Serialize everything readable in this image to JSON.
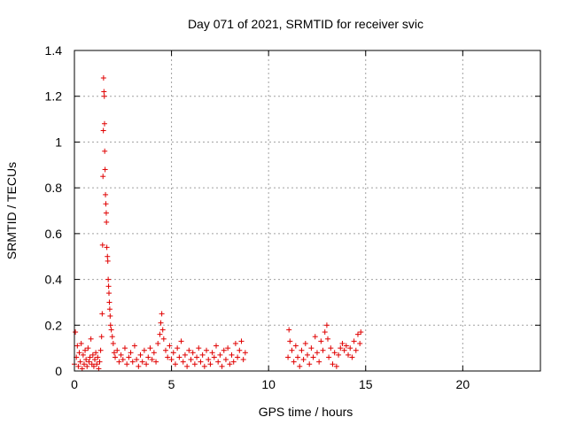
{
  "chart_data": {
    "type": "scatter",
    "title": "Day 071 of 2021, SRMTID for receiver svic",
    "xlabel": "GPS time / hours",
    "ylabel": "SRMTID / TECUs",
    "xlim": [
      0,
      24
    ],
    "ylim": [
      0,
      1.4
    ],
    "x_ticks": [
      0,
      5,
      10,
      15,
      20
    ],
    "x_tick_labels": [
      "0",
      "5",
      "10",
      "15",
      "20"
    ],
    "y_ticks": [
      0,
      0.2,
      0.4,
      0.6,
      0.8,
      1.0,
      1.2,
      1.4
    ],
    "y_tick_labels": [
      "0",
      "0.2",
      "0.4",
      "0.6",
      "0.8",
      "1",
      "1.2",
      "1.4"
    ],
    "grid": true,
    "marker": "+",
    "color": "#e00000",
    "series": [
      {
        "name": "SRMTID",
        "points": [
          [
            0.0,
            0.03
          ],
          [
            0.05,
            0.17
          ],
          [
            0.1,
            0.06
          ],
          [
            0.15,
            0.11
          ],
          [
            0.2,
            0.02
          ],
          [
            0.25,
            0.08
          ],
          [
            0.3,
            0.04
          ],
          [
            0.35,
            0.12
          ],
          [
            0.4,
            0.01
          ],
          [
            0.45,
            0.07
          ],
          [
            0.5,
            0.03
          ],
          [
            0.55,
            0.09
          ],
          [
            0.6,
            0.05
          ],
          [
            0.65,
            0.02
          ],
          [
            0.7,
            0.1
          ],
          [
            0.75,
            0.04
          ],
          [
            0.8,
            0.06
          ],
          [
            0.85,
            0.14
          ],
          [
            0.9,
            0.03
          ],
          [
            0.95,
            0.07
          ],
          [
            1.0,
            0.02
          ],
          [
            1.05,
            0.05
          ],
          [
            1.1,
            0.08
          ],
          [
            1.15,
            0.03
          ],
          [
            1.2,
            0.06
          ],
          [
            1.25,
            0.01
          ],
          [
            1.3,
            0.04
          ],
          [
            1.35,
            0.09
          ],
          [
            1.4,
            0.15
          ],
          [
            1.43,
            0.25
          ],
          [
            1.45,
            0.55
          ],
          [
            1.47,
            0.85
          ],
          [
            1.49,
            1.05
          ],
          [
            1.5,
            1.28
          ],
          [
            1.52,
            1.22
          ],
          [
            1.54,
            1.2
          ],
          [
            1.55,
            1.08
          ],
          [
            1.56,
            0.96
          ],
          [
            1.58,
            0.88
          ],
          [
            1.6,
            0.77
          ],
          [
            1.62,
            0.73
          ],
          [
            1.64,
            0.69
          ],
          [
            1.65,
            0.65
          ],
          [
            1.67,
            0.54
          ],
          [
            1.7,
            0.5
          ],
          [
            1.72,
            0.48
          ],
          [
            1.74,
            0.4
          ],
          [
            1.76,
            0.37
          ],
          [
            1.78,
            0.34
          ],
          [
            1.8,
            0.3
          ],
          [
            1.82,
            0.27
          ],
          [
            1.84,
            0.24
          ],
          [
            1.86,
            0.2
          ],
          [
            1.9,
            0.18
          ],
          [
            1.95,
            0.15
          ],
          [
            2.0,
            0.12
          ],
          [
            2.05,
            0.08
          ],
          [
            2.1,
            0.06
          ],
          [
            2.2,
            0.09
          ],
          [
            2.3,
            0.04
          ],
          [
            2.4,
            0.07
          ],
          [
            2.5,
            0.05
          ],
          [
            2.6,
            0.1
          ],
          [
            2.7,
            0.03
          ],
          [
            2.8,
            0.06
          ],
          [
            2.9,
            0.08
          ],
          [
            3.0,
            0.04
          ],
          [
            3.1,
            0.11
          ],
          [
            3.2,
            0.05
          ],
          [
            3.3,
            0.02
          ],
          [
            3.4,
            0.07
          ],
          [
            3.5,
            0.04
          ],
          [
            3.6,
            0.09
          ],
          [
            3.7,
            0.03
          ],
          [
            3.8,
            0.06
          ],
          [
            3.9,
            0.1
          ],
          [
            4.0,
            0.05
          ],
          [
            4.1,
            0.08
          ],
          [
            4.2,
            0.04
          ],
          [
            4.3,
            0.12
          ],
          [
            4.4,
            0.16
          ],
          [
            4.45,
            0.21
          ],
          [
            4.5,
            0.25
          ],
          [
            4.55,
            0.18
          ],
          [
            4.6,
            0.14
          ],
          [
            4.7,
            0.09
          ],
          [
            4.8,
            0.06
          ],
          [
            4.9,
            0.11
          ],
          [
            5.0,
            0.05
          ],
          [
            5.1,
            0.08
          ],
          [
            5.2,
            0.03
          ],
          [
            5.3,
            0.1
          ],
          [
            5.4,
            0.06
          ],
          [
            5.5,
            0.13
          ],
          [
            5.6,
            0.04
          ],
          [
            5.7,
            0.07
          ],
          [
            5.8,
            0.02
          ],
          [
            5.9,
            0.09
          ],
          [
            6.0,
            0.05
          ],
          [
            6.1,
            0.08
          ],
          [
            6.2,
            0.03
          ],
          [
            6.3,
            0.06
          ],
          [
            6.4,
            0.1
          ],
          [
            6.5,
            0.04
          ],
          [
            6.6,
            0.07
          ],
          [
            6.7,
            0.02
          ],
          [
            6.8,
            0.09
          ],
          [
            6.9,
            0.05
          ],
          [
            7.0,
            0.03
          ],
          [
            7.1,
            0.08
          ],
          [
            7.2,
            0.06
          ],
          [
            7.3,
            0.11
          ],
          [
            7.4,
            0.04
          ],
          [
            7.5,
            0.07
          ],
          [
            7.6,
            0.02
          ],
          [
            7.7,
            0.09
          ],
          [
            7.8,
            0.05
          ],
          [
            7.9,
            0.1
          ],
          [
            8.0,
            0.03
          ],
          [
            8.1,
            0.07
          ],
          [
            8.2,
            0.04
          ],
          [
            8.3,
            0.12
          ],
          [
            8.4,
            0.06
          ],
          [
            8.5,
            0.09
          ],
          [
            8.6,
            0.13
          ],
          [
            8.7,
            0.05
          ],
          [
            8.8,
            0.08
          ],
          [
            11.0,
            0.06
          ],
          [
            11.05,
            0.18
          ],
          [
            11.1,
            0.13
          ],
          [
            11.2,
            0.09
          ],
          [
            11.3,
            0.04
          ],
          [
            11.4,
            0.11
          ],
          [
            11.5,
            0.06
          ],
          [
            11.6,
            0.02
          ],
          [
            11.7,
            0.09
          ],
          [
            11.8,
            0.05
          ],
          [
            11.9,
            0.12
          ],
          [
            12.0,
            0.07
          ],
          [
            12.1,
            0.03
          ],
          [
            12.2,
            0.1
          ],
          [
            12.3,
            0.06
          ],
          [
            12.4,
            0.15
          ],
          [
            12.5,
            0.08
          ],
          [
            12.6,
            0.04
          ],
          [
            12.7,
            0.13
          ],
          [
            12.8,
            0.09
          ],
          [
            12.9,
            0.17
          ],
          [
            13.0,
            0.2
          ],
          [
            13.05,
            0.14
          ],
          [
            13.1,
            0.06
          ],
          [
            13.2,
            0.1
          ],
          [
            13.3,
            0.03
          ],
          [
            13.4,
            0.08
          ],
          [
            13.5,
            0.02
          ],
          [
            13.6,
            0.07
          ],
          [
            13.7,
            0.1
          ],
          [
            13.8,
            0.12
          ],
          [
            13.9,
            0.09
          ],
          [
            14.0,
            0.11
          ],
          [
            14.1,
            0.07
          ],
          [
            14.2,
            0.1
          ],
          [
            14.3,
            0.06
          ],
          [
            14.4,
            0.13
          ],
          [
            14.5,
            0.09
          ],
          [
            14.6,
            0.16
          ],
          [
            14.7,
            0.12
          ],
          [
            14.75,
            0.17
          ]
        ]
      }
    ]
  }
}
